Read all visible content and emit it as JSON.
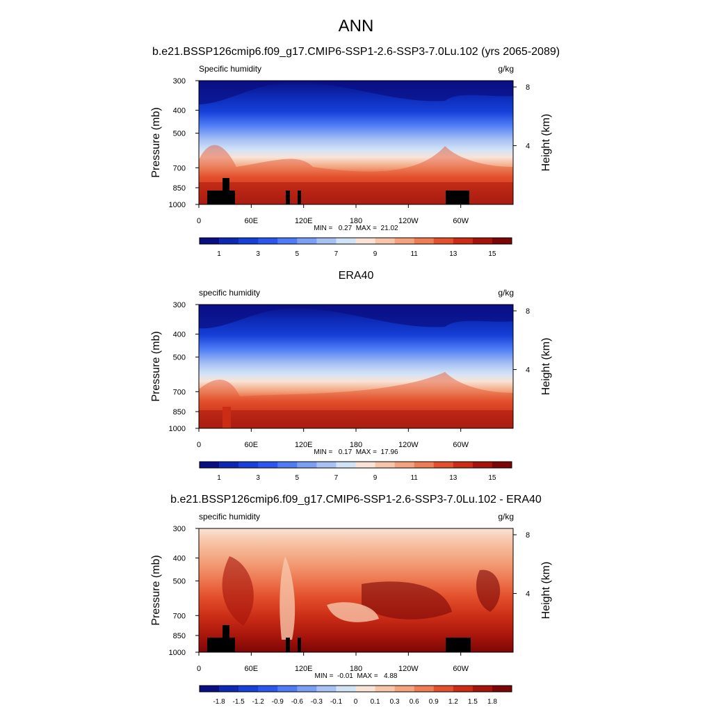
{
  "figure": {
    "title": "ANN",
    "subtitle": "b.e21.BSSP126cmip6.f09_g17.CMIP6-SSP1-2.6-SSP3-7.0Lu.102 (yrs 2065-2089)"
  },
  "chart_data": [
    {
      "type": "heatmap",
      "title": "b.e21.BSSP126cmip6.f09_g17.CMIP6-SSP1-2.6-SSP3-7.0Lu.102 (yrs 2065-2089)",
      "variable": "Specific humidity",
      "units": "g/kg",
      "ylabel": "Pressure (mb)",
      "y2label": "Height (km)",
      "x_ticks": [
        "0",
        "60E",
        "120E",
        "180",
        "120W",
        "60W"
      ],
      "x_tick_lons": [
        0,
        60,
        120,
        180,
        240,
        300
      ],
      "xlim": [
        0,
        360
      ],
      "y_ticks": [
        300,
        400,
        500,
        700,
        850,
        1000
      ],
      "ylim": [
        1000,
        300
      ],
      "y2_ticks": [
        8,
        4
      ],
      "stats": "MIN =   0.27  MAX =  21.02",
      "min": 0.27,
      "max": 21.02,
      "colorbar_labels": [
        "1",
        "3",
        "5",
        "7",
        "9",
        "11",
        "13",
        "15"
      ],
      "colorbar_colors": [
        "#0a0e83",
        "#0d29b4",
        "#1640d8",
        "#2b57ef",
        "#4f7cf6",
        "#7a9ff4",
        "#a9c2f4",
        "#d3e3f6",
        "#f9e3d6",
        "#f7c6aa",
        "#f3a47e",
        "#ee7c55",
        "#e3502c",
        "#ca2c16",
        "#a5140b",
        "#7c0606"
      ],
      "terrain": true
    },
    {
      "type": "heatmap",
      "title": "ERA40",
      "variable": "specific humidity",
      "units": "g/kg",
      "ylabel": "Pressure (mb)",
      "y2label": "Height (km)",
      "x_ticks": [
        "0",
        "60E",
        "120E",
        "180",
        "120W",
        "60W"
      ],
      "x_tick_lons": [
        0,
        60,
        120,
        180,
        240,
        300
      ],
      "xlim": [
        0,
        360
      ],
      "y_ticks": [
        300,
        400,
        500,
        700,
        850,
        1000
      ],
      "ylim": [
        1000,
        300
      ],
      "y2_ticks": [
        8,
        4
      ],
      "stats": "MIN =   0.17  MAX =  17.96",
      "min": 0.17,
      "max": 17.96,
      "colorbar_labels": [
        "1",
        "3",
        "5",
        "7",
        "9",
        "11",
        "13",
        "15"
      ],
      "colorbar_colors": [
        "#0a0e83",
        "#0d29b4",
        "#1640d8",
        "#2b57ef",
        "#4f7cf6",
        "#7a9ff4",
        "#a9c2f4",
        "#d3e3f6",
        "#f9e3d6",
        "#f7c6aa",
        "#f3a47e",
        "#ee7c55",
        "#e3502c",
        "#ca2c16",
        "#a5140b",
        "#7c0606"
      ],
      "terrain": false
    },
    {
      "type": "heatmap",
      "title": "b.e21.BSSP126cmip6.f09_g17.CMIP6-SSP1-2.6-SSP3-7.0Lu.102 - ERA40",
      "variable": "specific humidity",
      "units": "g/kg",
      "ylabel": "Pressure (mb)",
      "y2label": "Height (km)",
      "x_ticks": [
        "0",
        "60E",
        "120E",
        "180",
        "120W",
        "60W"
      ],
      "x_tick_lons": [
        0,
        60,
        120,
        180,
        240,
        300
      ],
      "xlim": [
        0,
        360
      ],
      "y_ticks": [
        300,
        400,
        500,
        700,
        850,
        1000
      ],
      "ylim": [
        1000,
        300
      ],
      "y2_ticks": [
        8,
        4
      ],
      "stats": "MIN =  -0.01  MAX =   4.88",
      "min": -0.01,
      "max": 4.88,
      "colorbar_labels": [
        "-1.8",
        "-1.5",
        "-1.2",
        "-0.9",
        "-0.6",
        "-0.3",
        "-0.1",
        "0",
        "0.1",
        "0.3",
        "0.6",
        "0.9",
        "1.2",
        "1.5",
        "1.8"
      ],
      "colorbar_colors": [
        "#0a0e83",
        "#0d29b4",
        "#1640d8",
        "#2b57ef",
        "#4f7cf6",
        "#7a9ff4",
        "#a9c2f4",
        "#d3e3f6",
        "#f9e3d6",
        "#f7c6aa",
        "#f3a47e",
        "#ee7c55",
        "#e3502c",
        "#ca2c16",
        "#a5140b",
        "#7c0606"
      ],
      "terrain": true
    }
  ]
}
